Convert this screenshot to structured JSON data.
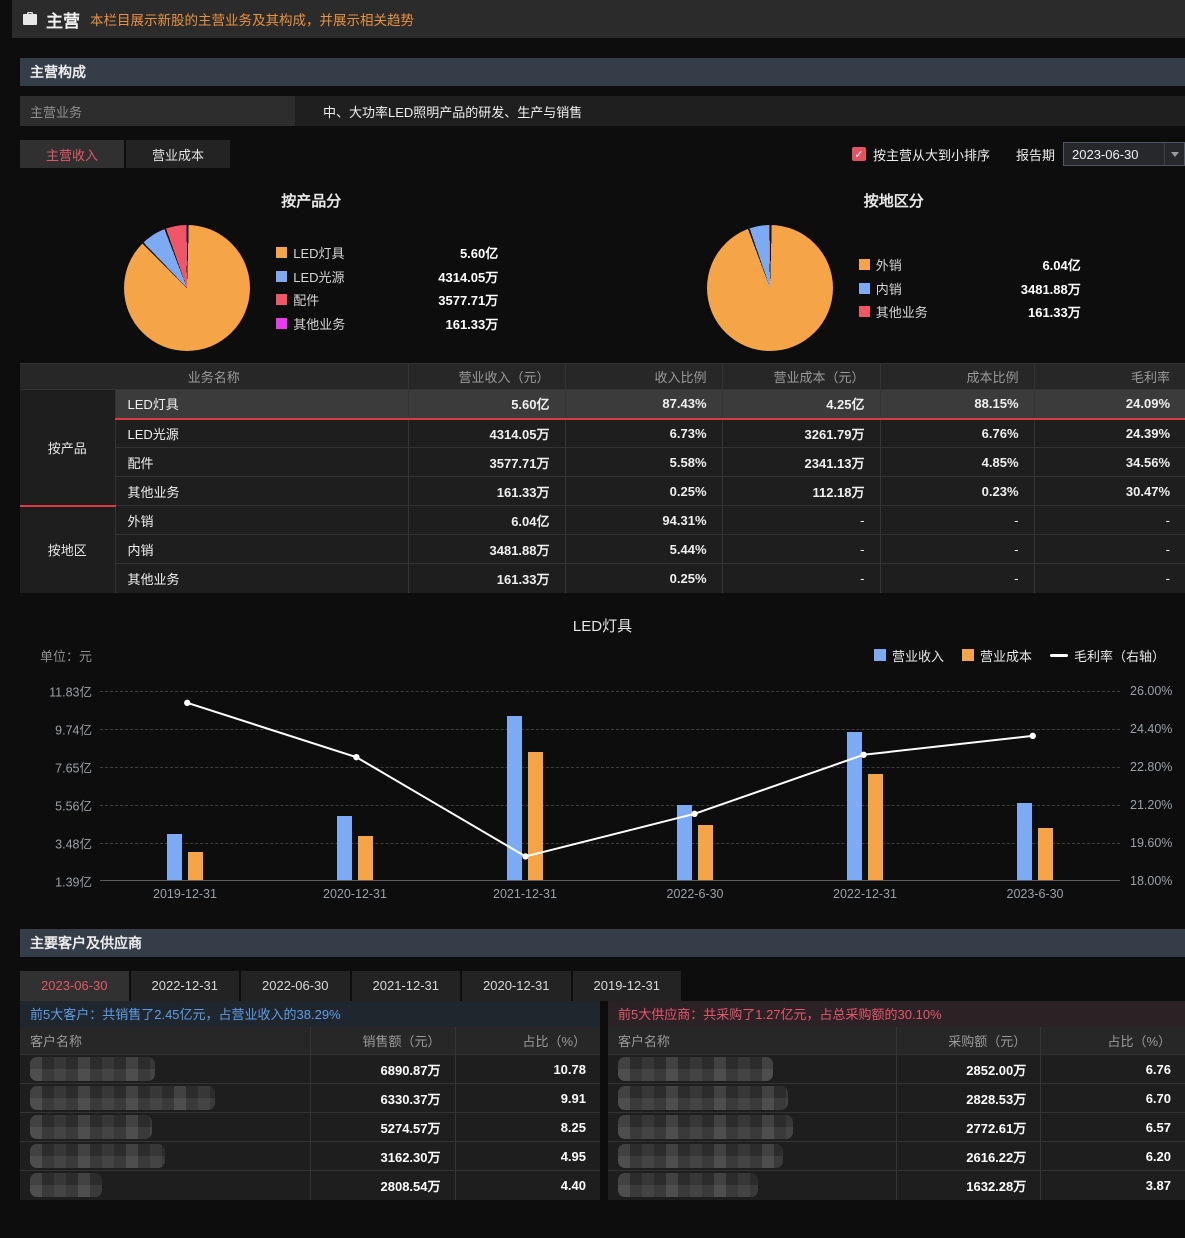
{
  "header": {
    "title": "主营",
    "subtitle": "本栏目展示新股的主营业务及其构成，并展示相关趋势"
  },
  "composition": {
    "section_title": "主营构成",
    "business_label": "主营业务",
    "business_value": "中、大功率LED照明产品的研发、生产与销售",
    "tabs": [
      {
        "label": "主营收入",
        "active": true
      },
      {
        "label": "营业成本",
        "active": false
      }
    ],
    "sort_checkbox_label": "按主营从大到小排序",
    "report_period_label": "报告期",
    "report_period_value": "2023-06-30",
    "table": {
      "headers": [
        "业务名称",
        "营业收入（元）",
        "收入比例",
        "营业成本（元）",
        "成本比例",
        "毛利率"
      ],
      "groups": [
        {
          "name": "按产品",
          "rows": [
            {
              "name": "LED灯具",
              "revenue": "5.60亿",
              "revenue_pct": "87.43%",
              "cost": "4.25亿",
              "cost_pct": "88.15%",
              "margin": "24.09%"
            },
            {
              "name": "LED光源",
              "revenue": "4314.05万",
              "revenue_pct": "6.73%",
              "cost": "3261.79万",
              "cost_pct": "6.76%",
              "margin": "24.39%"
            },
            {
              "name": "配件",
              "revenue": "3577.71万",
              "revenue_pct": "5.58%",
              "cost": "2341.13万",
              "cost_pct": "4.85%",
              "margin": "34.56%"
            },
            {
              "name": "其他业务",
              "revenue": "161.33万",
              "revenue_pct": "0.25%",
              "cost": "112.18万",
              "cost_pct": "0.23%",
              "margin": "30.47%"
            }
          ]
        },
        {
          "name": "按地区",
          "rows": [
            {
              "name": "外销",
              "revenue": "6.04亿",
              "revenue_pct": "94.31%",
              "cost": "-",
              "cost_pct": "-",
              "margin": "-"
            },
            {
              "name": "内销",
              "revenue": "3481.88万",
              "revenue_pct": "5.44%",
              "cost": "-",
              "cost_pct": "-",
              "margin": "-"
            },
            {
              "name": "其他业务",
              "revenue": "161.33万",
              "revenue_pct": "0.25%",
              "cost": "-",
              "cost_pct": "-",
              "margin": "-"
            }
          ]
        }
      ]
    }
  },
  "chart_data": [
    {
      "type": "pie",
      "title": "按产品分",
      "slices": [
        {
          "label": "LED灯具",
          "display": "5.60亿",
          "pct": 87.43,
          "color": "#f6a448"
        },
        {
          "label": "LED光源",
          "display": "4314.05万",
          "pct": 6.73,
          "color": "#7cabf3"
        },
        {
          "label": "配件",
          "display": "3577.71万",
          "pct": 5.58,
          "color": "#ef5666"
        },
        {
          "label": "其他业务",
          "display": "161.33万",
          "pct": 0.25,
          "color": "#e93cf0"
        }
      ]
    },
    {
      "type": "pie",
      "title": "按地区分",
      "slices": [
        {
          "label": "外销",
          "display": "6.04亿",
          "pct": 94.31,
          "color": "#f6a448"
        },
        {
          "label": "内销",
          "display": "3481.88万",
          "pct": 5.44,
          "color": "#7cabf3"
        },
        {
          "label": "其他业务",
          "display": "161.33万",
          "pct": 0.25,
          "color": "#ef5666"
        }
      ]
    },
    {
      "type": "bar",
      "title": "LED灯具",
      "unit": "单位：元",
      "categories": [
        "2019-12-31",
        "2020-12-31",
        "2021-12-31",
        "2022-6-30",
        "2022-12-31",
        "2023-6-30"
      ],
      "series": [
        {
          "name": "营业收入",
          "kind": "bar",
          "color": "#7cabf3",
          "unit": "亿",
          "values": [
            3.9,
            4.9,
            10.4,
            5.5,
            9.5,
            5.6
          ]
        },
        {
          "name": "营业成本",
          "kind": "bar",
          "color": "#f6a448",
          "unit": "亿",
          "values": [
            2.9,
            3.8,
            8.4,
            4.4,
            7.2,
            4.25
          ]
        },
        {
          "name": "毛利率（右轴）",
          "kind": "line",
          "color": "#ffffff",
          "unit": "%",
          "axis": "right",
          "values": [
            25.5,
            23.2,
            19.0,
            20.8,
            23.3,
            24.1
          ]
        }
      ],
      "y_left": {
        "min": 1.39,
        "max": 11.83,
        "ticks": [
          "11.83亿",
          "9.74亿",
          "7.65亿",
          "5.56亿",
          "3.48亿",
          "1.39亿"
        ]
      },
      "y_right": {
        "min": 18,
        "max": 26,
        "ticks": [
          "26.00%",
          "24.40%",
          "22.80%",
          "21.20%",
          "19.60%",
          "18.00%"
        ]
      },
      "grid": "dashed",
      "legend_position": "top-right"
    }
  ],
  "clients": {
    "section_title": "主要客户及供应商",
    "tabs": [
      "2023-06-30",
      "2022-12-31",
      "2022-06-30",
      "2021-12-31",
      "2020-12-31",
      "2019-12-31"
    ],
    "active_tab": "2023-06-30",
    "customers": {
      "summary": "前5大客户：共销售了2.45亿元，占营业收入的38.29%",
      "headers": [
        "客户名称",
        "销售额（元）",
        "占比（%）"
      ],
      "rows": [
        {
          "amount": "6890.87万",
          "pct": "10.78"
        },
        {
          "amount": "6330.37万",
          "pct": "9.91"
        },
        {
          "amount": "5274.57万",
          "pct": "8.25"
        },
        {
          "amount": "3162.30万",
          "pct": "4.95"
        },
        {
          "amount": "2808.54万",
          "pct": "4.40"
        }
      ]
    },
    "suppliers": {
      "summary": "前5大供应商：共采购了1.27亿元，占总采购额的30.10%",
      "headers": [
        "客户名称",
        "采购额（元）",
        "占比（%）"
      ],
      "rows": [
        {
          "amount": "2852.00万",
          "pct": "6.76"
        },
        {
          "amount": "2828.53万",
          "pct": "6.70"
        },
        {
          "amount": "2772.61万",
          "pct": "6.57"
        },
        {
          "amount": "2616.22万",
          "pct": "6.20"
        },
        {
          "amount": "1632.28万",
          "pct": "3.87"
        }
      ]
    }
  }
}
